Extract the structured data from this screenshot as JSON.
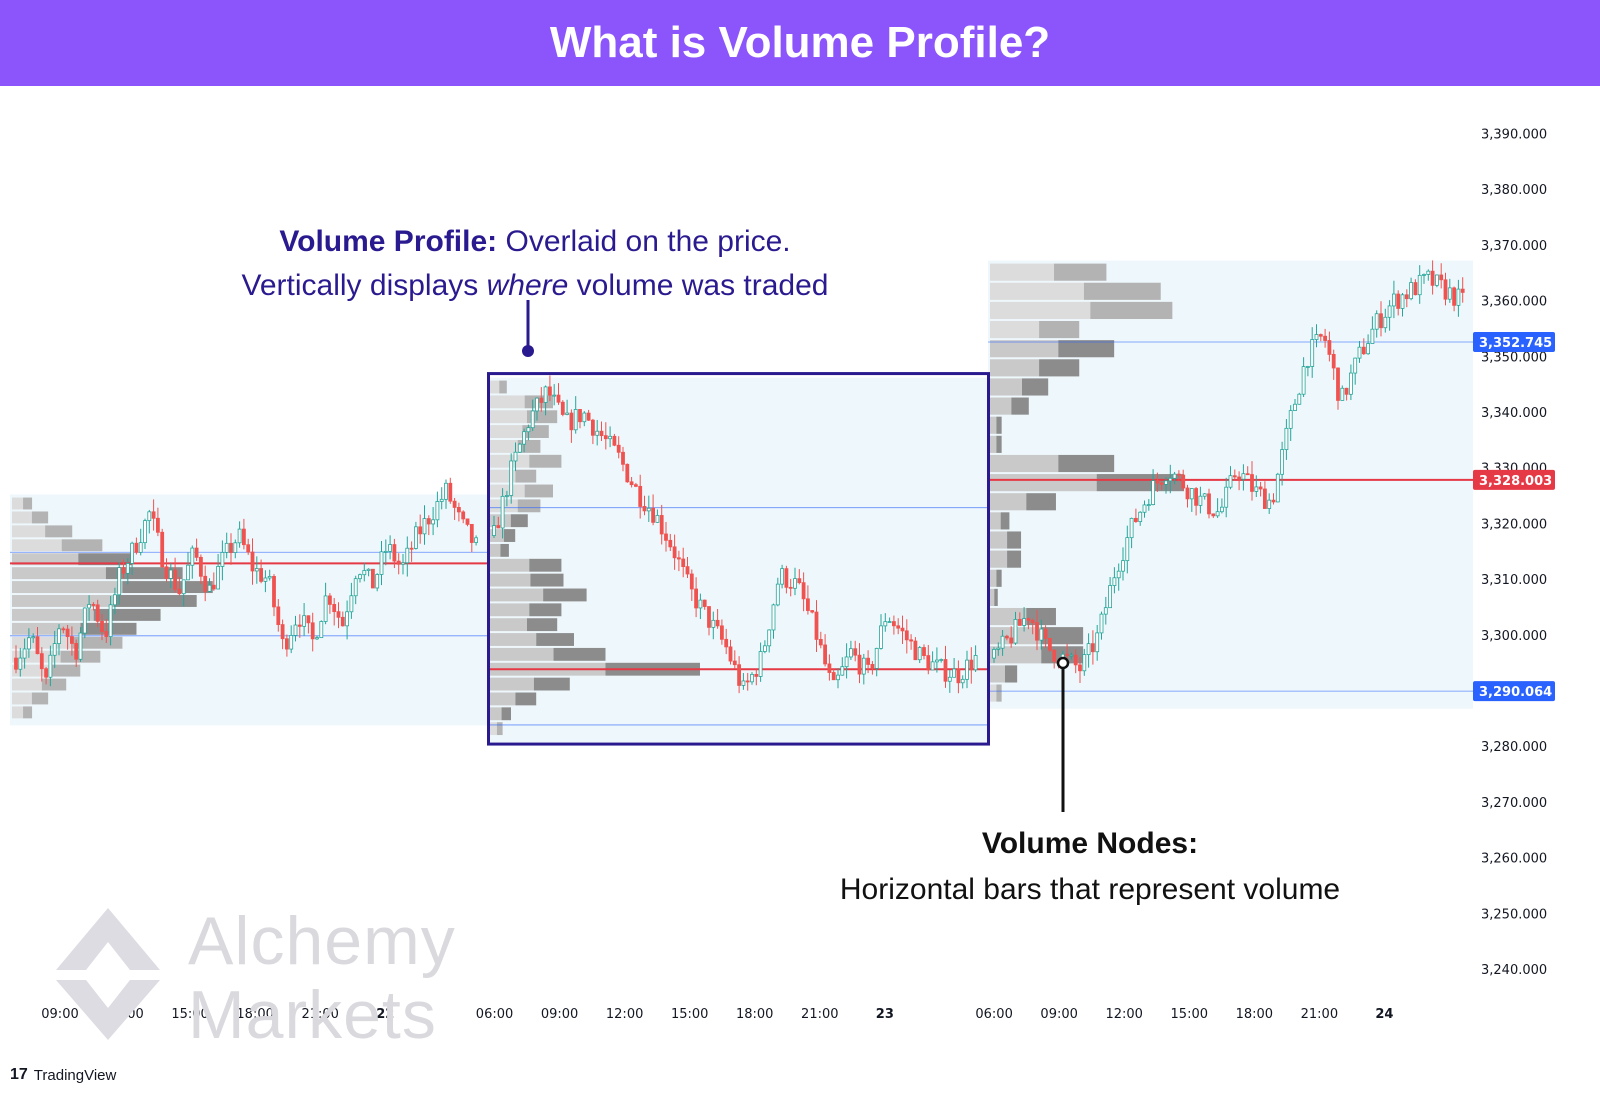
{
  "banner": {
    "title": "What is Volume Profile?"
  },
  "annotations": {
    "volume_profile": {
      "bold": "Volume Profile:",
      "line1_rest": " Overlaid on the price.",
      "line2_a": "Vertically displays ",
      "line2_em": "where",
      "line2_b": " volume was traded"
    },
    "volume_nodes": {
      "title": "Volume Nodes:",
      "text": "Horizontal bars that represent volume"
    }
  },
  "watermark": {
    "line1": "Alchemy",
    "line2": "Markets"
  },
  "brand": {
    "logo": "17",
    "label": "TradingView"
  },
  "colors": {
    "banner": "#8c55fb",
    "up": "#26a69a",
    "down": "#ef5350",
    "poc": "#e53945",
    "value_area_line": "#2962ff",
    "profile_bg": "#eef7fb",
    "highlight_box": "#2a1a8f",
    "blue_tag": "#2962ff",
    "red_tag": "#e53945"
  },
  "chart_data": {
    "type": "candlestick",
    "title": "",
    "y_axis": {
      "min": 3233,
      "max": 3403,
      "ticks": [
        "3,240.000",
        "3,250.000",
        "3,260.000",
        "3,270.000",
        "3,280.000",
        "3,290.000",
        "3,300.000",
        "3,310.000",
        "3,320.000",
        "3,330.000",
        "3,340.000",
        "3,350.000",
        "3,360.000",
        "3,370.000",
        "3,380.000",
        "3,390.000"
      ],
      "tick_values": [
        3240,
        3250,
        3260,
        3270,
        3280,
        3290,
        3300,
        3310,
        3320,
        3330,
        3340,
        3350,
        3360,
        3370,
        3380,
        3390
      ]
    },
    "x_axis": {
      "labels": [
        "09:00",
        "12:00",
        "15:00",
        "18:00",
        "21:00",
        "22",
        "06:00",
        "09:00",
        "12:00",
        "15:00",
        "18:00",
        "21:00",
        "23",
        "06:00",
        "09:00",
        "12:00",
        "15:00",
        "18:00",
        "21:00",
        "24"
      ],
      "bold_labels": [
        "22",
        "23",
        "24"
      ]
    },
    "price_tags": [
      {
        "value": 3352.745,
        "label": "3,352.745",
        "color": "blue"
      },
      {
        "value": 3328.003,
        "label": "3,328.003",
        "color": "red"
      },
      {
        "value": 3290.064,
        "label": "3,290.064",
        "color": "blue"
      }
    ],
    "sessions": [
      {
        "name": "session-1",
        "price_path": [
          3296,
          3300,
          3291,
          3303,
          3297,
          3307,
          3300,
          3311,
          3316,
          3322,
          3313,
          3308,
          3315,
          3308,
          3314,
          3318,
          3312,
          3310,
          3298,
          3304,
          3299,
          3308,
          3302,
          3313,
          3309,
          3316,
          3312,
          3318,
          3322,
          3326,
          3320,
          3316
        ],
        "value_area_high": 3315,
        "poc": 3313,
        "value_area_low": 3300,
        "profile_top": 3325,
        "profile_bottom": 3285,
        "profile_volumes": [
          0.1,
          0.18,
          0.3,
          0.45,
          0.6,
          0.85,
          1.0,
          0.92,
          0.74,
          0.62,
          0.55,
          0.44,
          0.34,
          0.27,
          0.18,
          0.1
        ]
      },
      {
        "name": "session-2",
        "price_path": [
          3318,
          3330,
          3339,
          3344,
          3338,
          3340,
          3336,
          3332,
          3326,
          3322,
          3316,
          3308,
          3303,
          3298,
          3290,
          3296,
          3311,
          3309,
          3301,
          3290,
          3297,
          3293,
          3304,
          3300,
          3296,
          3294,
          3293,
          3296
        ],
        "value_area_high": 3323,
        "poc": 3294,
        "value_area_low": 3284,
        "profile_top": 3346,
        "profile_bottom": 3282,
        "profile_volumes": [
          0.08,
          0.3,
          0.32,
          0.28,
          0.24,
          0.34,
          0.22,
          0.3,
          0.24,
          0.18,
          0.12,
          0.09,
          0.34,
          0.35,
          0.46,
          0.34,
          0.32,
          0.4,
          0.55,
          1.0,
          0.38,
          0.22,
          0.1,
          0.06
        ]
      },
      {
        "name": "session-3",
        "price_path": [
          3296,
          3300,
          3304,
          3298,
          3296,
          3294,
          3300,
          3312,
          3320,
          3326,
          3330,
          3327,
          3324,
          3322,
          3330,
          3326,
          3324,
          3338,
          3350,
          3354,
          3342,
          3350,
          3356,
          3360,
          3362,
          3364,
          3362,
          3360
        ],
        "value_area_high": 3352.745,
        "poc": 3328.003,
        "value_area_low": 3290.064,
        "profile_top": 3367,
        "profile_bottom": 3288,
        "profile_volumes": [
          0.6,
          0.88,
          0.94,
          0.46,
          0.64,
          0.46,
          0.3,
          0.2,
          0.06,
          0.06,
          0.64,
          1.0,
          0.34,
          0.1,
          0.16,
          0.16,
          0.06,
          0.04,
          0.34,
          0.48,
          0.48,
          0.14,
          0.06
        ]
      }
    ]
  }
}
